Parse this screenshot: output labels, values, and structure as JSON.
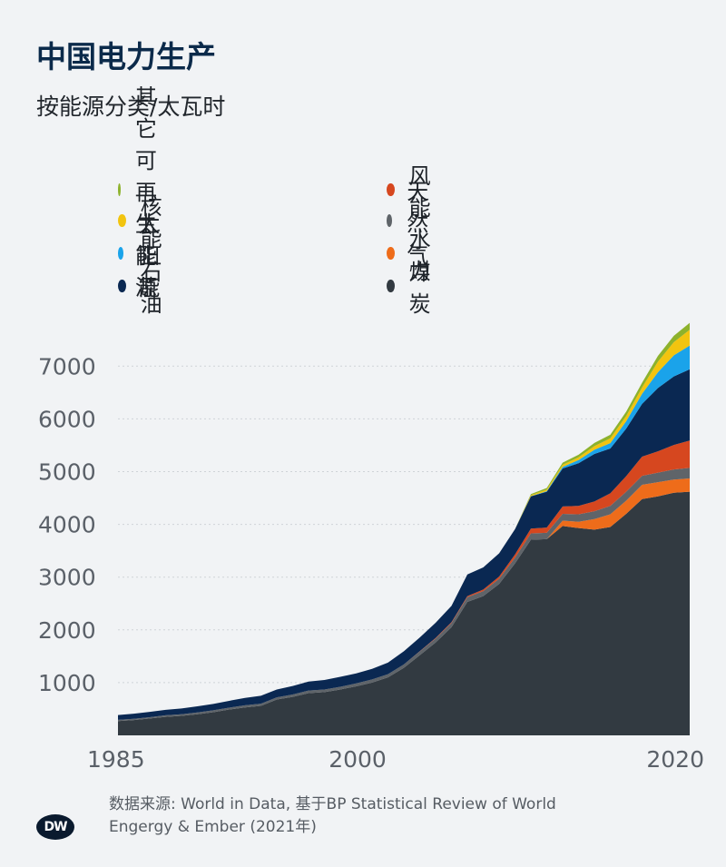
{
  "title": "中国电力生产",
  "subtitle": "按能源分类/太瓦时",
  "legend": [
    {
      "label": "其它可再生能源",
      "color": "#8db22c"
    },
    {
      "label": "风能",
      "color": "#d6471f"
    },
    {
      "label": "核能",
      "color": "#f2c40f"
    },
    {
      "label": "天然气",
      "color": "#5f6469"
    },
    {
      "label": "太阳能",
      "color": "#1aa3ea"
    },
    {
      "label": "水力",
      "color": "#ee6c1a"
    },
    {
      "label": "石油",
      "color": "#0a2852"
    },
    {
      "label": "煤炭",
      "color": "#323a41"
    }
  ],
  "chart_data": {
    "type": "area",
    "stacked": true,
    "title": "中国电力生产",
    "subtitle": "按能源分类/太瓦时",
    "x_tick_labels": [
      "1985",
      "2000",
      "2020"
    ],
    "y_tick_labels": [
      "1000",
      "2000",
      "3000",
      "4000",
      "5000",
      "6000",
      "7000"
    ],
    "xlim": [
      1985,
      2021
    ],
    "ylim": [
      0,
      7800
    ],
    "grid": true,
    "legend_position": "top",
    "x": [
      1985,
      1986,
      1987,
      1988,
      1989,
      1990,
      1991,
      1992,
      1993,
      1994,
      1995,
      1996,
      1997,
      1998,
      1999,
      2000,
      2001,
      2002,
      2003,
      2004,
      2005,
      2006,
      2007,
      2008,
      2009,
      2010,
      2011,
      2012,
      2013,
      2014,
      2015,
      2016,
      2017,
      2018,
      2019,
      2020,
      2021
    ],
    "series": [
      {
        "name": "煤炭",
        "color": "#323a41",
        "values": [
          270,
          290,
          320,
          350,
          370,
          400,
          440,
          490,
          530,
          560,
          680,
          730,
          800,
          820,
          870,
          930,
          1000,
          1100,
          1280,
          1520,
          1760,
          2050,
          2530,
          2640,
          2870,
          3260,
          3710,
          3720,
          3970,
          3930,
          3900,
          3950,
          4200,
          4480,
          4530,
          4600,
          4620
        ]
      },
      {
        "name": "水力",
        "color": "#ee6c1a",
        "values": [
          0,
          0,
          0,
          0,
          0,
          0,
          0,
          0,
          0,
          0,
          0,
          0,
          0,
          0,
          0,
          0,
          0,
          0,
          0,
          0,
          0,
          0,
          0,
          0,
          0,
          0,
          0,
          0,
          100,
          120,
          200,
          240,
          250,
          270,
          270,
          250,
          250
        ]
      },
      {
        "name": "天然气",
        "color": "#5f6469",
        "values": [
          25,
          25,
          25,
          30,
          30,
          35,
          35,
          35,
          40,
          40,
          40,
          45,
          50,
          50,
          50,
          55,
          60,
          60,
          65,
          70,
          75,
          80,
          90,
          95,
          100,
          110,
          120,
          120,
          130,
          140,
          150,
          160,
          170,
          170,
          180,
          190,
          200
        ]
      },
      {
        "name": "风能",
        "color": "#d6471f",
        "values": [
          0,
          0,
          0,
          0,
          0,
          0,
          0,
          0,
          0,
          0,
          0,
          0,
          0,
          0,
          0,
          0,
          0,
          0,
          0,
          5,
          10,
          15,
          20,
          30,
          40,
          60,
          90,
          100,
          140,
          160,
          185,
          240,
          295,
          365,
          405,
          465,
          520
        ]
      },
      {
        "name": "石油",
        "color": "#0a2852",
        "values": [
          90,
          95,
          100,
          105,
          110,
          115,
          120,
          130,
          140,
          150,
          150,
          160,
          170,
          180,
          190,
          190,
          200,
          220,
          250,
          260,
          290,
          310,
          410,
          420,
          440,
          480,
          610,
          680,
          720,
          810,
          900,
          850,
          900,
          1000,
          1200,
          1300,
          1350
        ]
      },
      {
        "name": "太阳能",
        "color": "#1aa3ea",
        "values": [
          0,
          0,
          0,
          0,
          0,
          0,
          0,
          0,
          0,
          0,
          0,
          0,
          0,
          0,
          0,
          0,
          0,
          0,
          0,
          0,
          0,
          0,
          0,
          0,
          0,
          0,
          5,
          10,
          30,
          60,
          80,
          100,
          140,
          190,
          300,
          400,
          450
        ]
      },
      {
        "name": "核能",
        "color": "#f2c40f",
        "values": [
          0,
          0,
          0,
          0,
          0,
          0,
          0,
          0,
          0,
          0,
          0,
          0,
          0,
          0,
          0,
          0,
          0,
          0,
          0,
          0,
          0,
          0,
          0,
          0,
          0,
          0,
          20,
          30,
          40,
          50,
          70,
          90,
          100,
          120,
          200,
          250,
          300
        ]
      },
      {
        "name": "其它可再生能源",
        "color": "#8db22c",
        "values": [
          0,
          0,
          0,
          0,
          0,
          0,
          0,
          0,
          0,
          0,
          0,
          0,
          0,
          0,
          0,
          0,
          0,
          0,
          0,
          0,
          0,
          0,
          0,
          0,
          0,
          0,
          20,
          30,
          40,
          50,
          60,
          70,
          80,
          90,
          110,
          120,
          130
        ]
      }
    ]
  },
  "source": {
    "line1": "数据来源: World in Data, 基于BP Statistical Review of World",
    "line2": "Engergy & Ember (2021年)"
  },
  "logo": "DW"
}
